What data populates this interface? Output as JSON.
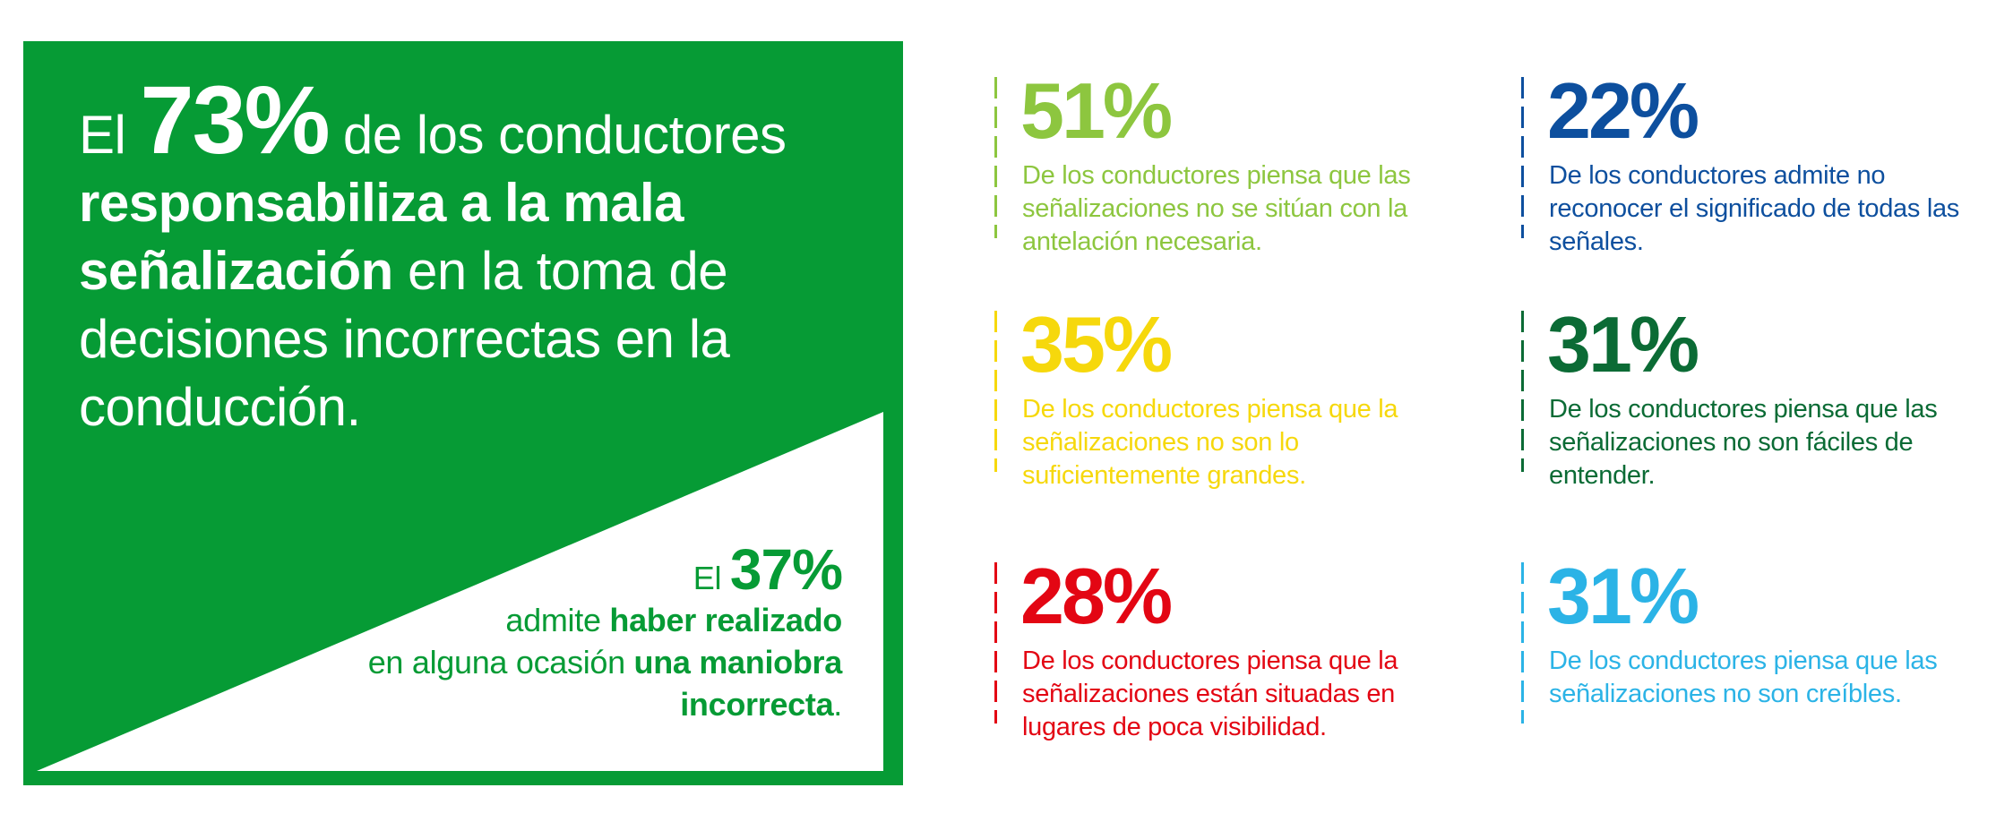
{
  "main_panel": {
    "headline": {
      "el": "El",
      "percent": "73%",
      "text_1": "de los conductores",
      "bold": "responsabiliza a la mala señalización",
      "text_2": "en la toma de decisiones incorrectas en la conducción."
    },
    "secondary": {
      "el": "El",
      "percent": "37%",
      "text_1": "admite",
      "bold_1": "haber realizado",
      "text_2": "en alguna ocasión",
      "bold_2": "una maniobra incorrecta",
      "end": "."
    }
  },
  "stats": [
    {
      "percent": "51%",
      "description": "De los conductores piensa que las señalizaciones no se sitúan con la antelación necesaria.",
      "color": "#8dc63f"
    },
    {
      "percent": "22%",
      "description": "De los conductores admite no reconocer el significado de todas las señales.",
      "color": "#0d4f9e"
    },
    {
      "percent": "35%",
      "description": "De los conductores piensa que la señalizaciones no son lo suficientemente grandes.",
      "color": "#f6d80c"
    },
    {
      "percent": "31%",
      "description": "De los conductores piensa que las señalizaciones no son fáciles de entender.",
      "color": "#0b6b35"
    },
    {
      "percent": "28%",
      "description": "De los conductores piensa que la señalizaciones están situadas en lugares de poca visibilidad.",
      "color": "#e30613"
    },
    {
      "percent": "31%",
      "description": "De los conductores piensa que las señalizaciones no son creíbles.",
      "color": "#2bb3e6"
    }
  ],
  "colors": {
    "panel_green": "#069b35",
    "white": "#ffffff"
  }
}
